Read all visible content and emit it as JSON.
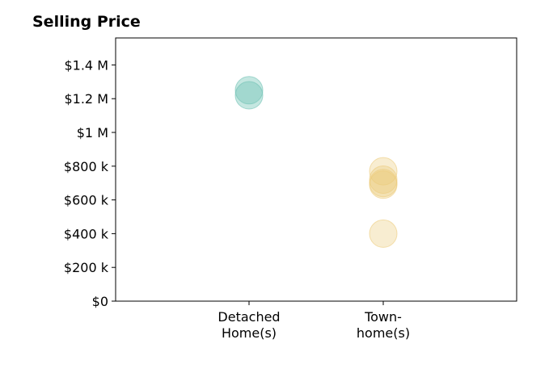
{
  "chart_data": {
    "type": "scatter",
    "title": "Selling Price",
    "categories": [
      "Detached\nHome(s)",
      "Town-\nhome(s)"
    ],
    "y_ticks": [
      {
        "value": 0,
        "label": "$0"
      },
      {
        "value": 200000,
        "label": "$200 k"
      },
      {
        "value": 400000,
        "label": "$400 k"
      },
      {
        "value": 600000,
        "label": "$600 k"
      },
      {
        "value": 800000,
        "label": "$800 k"
      },
      {
        "value": 1000000,
        "label": "$1 M"
      },
      {
        "value": 1200000,
        "label": "$1.2 M"
      },
      {
        "value": 1400000,
        "label": "$1.4 M"
      }
    ],
    "ylim": [
      0,
      1560000
    ],
    "grid": false,
    "series": [
      {
        "category": "Detached\nHome(s)",
        "color": "#6fc2b4",
        "opacity": 0.4,
        "values": [
          1250000,
          1220000
        ]
      },
      {
        "category": "Town-\nhome(s)",
        "color": "#eccb7b",
        "opacity": 0.35,
        "values": [
          770000,
          720000,
          700000,
          690000,
          400000
        ]
      }
    ]
  }
}
